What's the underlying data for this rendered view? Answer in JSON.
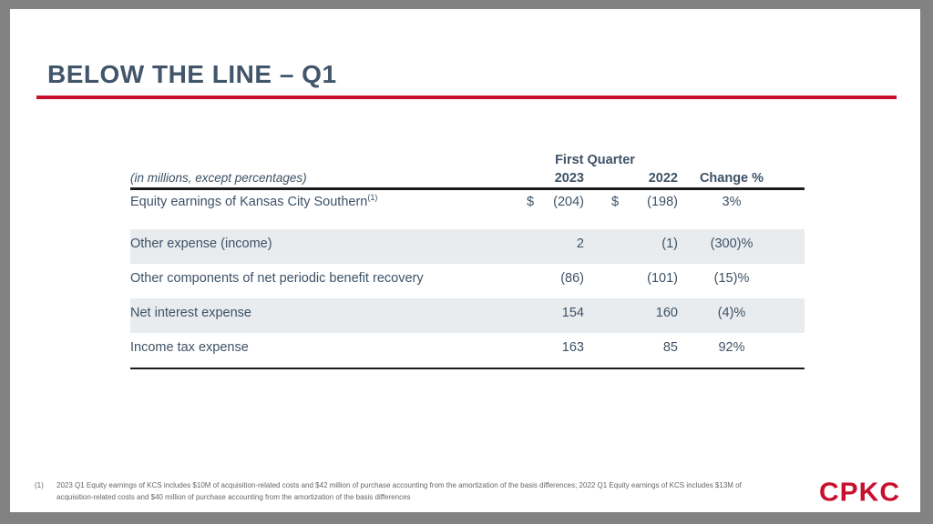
{
  "slide": {
    "title": "BELOW THE LINE – Q1",
    "logo_text": "CPKC",
    "colors": {
      "accent_red": "#C8102E",
      "title_slate": "#42566B",
      "table_text": "#3E5266",
      "row_stripe": "#E8ECEF",
      "frame_gray": "#828282"
    },
    "footnote": {
      "marker": "(1)",
      "text": "2023 Q1 Equity earnings of KCS includes $10M of acquisition-related costs and $42 million of purchase accounting from the amortization of the basis differences;  2022 Q1 Equity earnings of KCS includes $13M of acquisition-related costs and $40 million of purchase accounting from the amortization of the basis differences"
    }
  },
  "chart_data": {
    "type": "table",
    "title": "Below the line – Q1",
    "group_header": "First Quarter",
    "caption": "(in millions, except percentages)",
    "columns": [
      "2023",
      "2022",
      "Change %"
    ],
    "rows": [
      {
        "label": "Equity earnings of Kansas City Southern",
        "superscript": "(1)",
        "currency": "$",
        "y2023": "(204)",
        "y2022": "(198)",
        "change": "3%"
      },
      {
        "label": "Other expense (income)",
        "y2023": "2",
        "y2022": "(1)",
        "change": "(300)%"
      },
      {
        "label": "Other components of net periodic benefit recovery",
        "y2023": "(86)",
        "y2022": "(101)",
        "change": "(15)%"
      },
      {
        "label": "Net interest expense",
        "y2023": "154",
        "y2022": "160",
        "change": "(4)%"
      },
      {
        "label": "Income tax expense",
        "y2023": "163",
        "y2022": "85",
        "change": "92%"
      }
    ]
  }
}
